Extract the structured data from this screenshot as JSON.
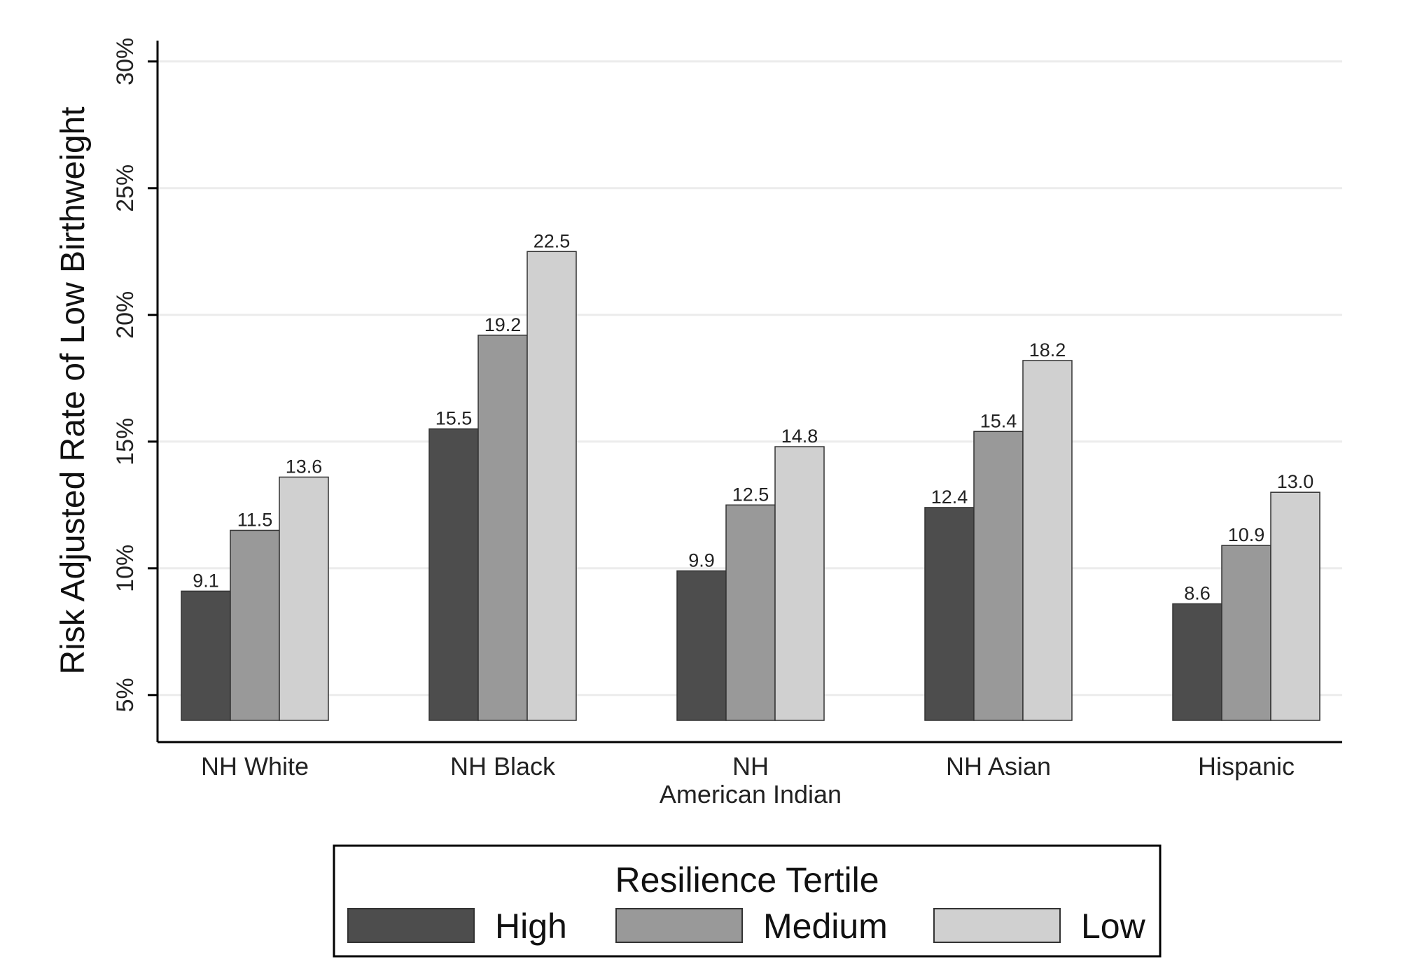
{
  "chart_data": {
    "type": "bar",
    "title": "",
    "xlabel": "",
    "ylabel": "Risk Adjusted Rate of Low Birthweight",
    "ylim": [
      4,
      31
    ],
    "yticks": [
      5,
      10,
      15,
      20,
      25,
      30
    ],
    "ytick_labels": [
      "5%",
      "10%",
      "15%",
      "20%",
      "25%",
      "30%"
    ],
    "grid": true,
    "categories": [
      [
        "NH White"
      ],
      [
        "NH Black"
      ],
      [
        "NH",
        "American Indian"
      ],
      [
        "NH Asian"
      ],
      [
        "Hispanic"
      ]
    ],
    "series": [
      {
        "name": "High",
        "color": "#4d4d4d",
        "values": [
          9.1,
          15.5,
          9.9,
          12.4,
          8.6
        ],
        "labels": [
          "9.1",
          "15.5",
          "9.9",
          "12.4",
          "8.6"
        ]
      },
      {
        "name": "Medium",
        "color": "#999999",
        "values": [
          11.5,
          19.2,
          12.5,
          15.4,
          10.9
        ],
        "labels": [
          "11.5",
          "19.2",
          "12.5",
          "15.4",
          "10.9"
        ]
      },
      {
        "name": "Low",
        "color": "#d0d0d0",
        "values": [
          13.6,
          22.5,
          14.8,
          18.2,
          13.0
        ],
        "labels": [
          "13.6",
          "22.5",
          "14.8",
          "18.2",
          "13.0"
        ]
      }
    ],
    "legend": {
      "title": "Resilience Tertile",
      "position": "bottom"
    }
  }
}
